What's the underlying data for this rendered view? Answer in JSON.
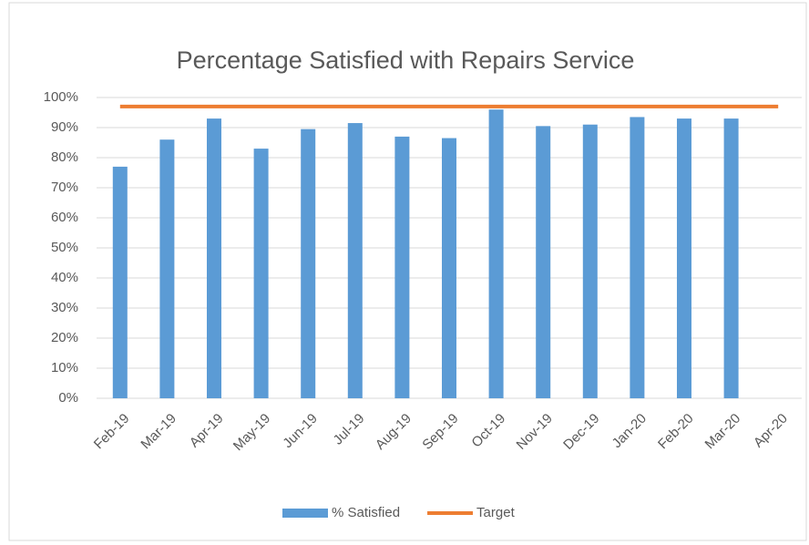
{
  "chart_data": {
    "type": "bar",
    "title": "Percentage Satisfied with Repairs Service",
    "categories": [
      "Feb-19",
      "Mar-19",
      "Apr-19",
      "May-19",
      "Jun-19",
      "Jul-19",
      "Aug-19",
      "Sep-19",
      "Oct-19",
      "Nov-19",
      "Dec-19",
      "Jan-20",
      "Feb-20",
      "Mar-20",
      "Apr-20"
    ],
    "series": [
      {
        "name": "% Satisfied",
        "type": "bar",
        "color": "#5b9bd5",
        "values": [
          77,
          86,
          93,
          83,
          89.5,
          91.5,
          87,
          86.5,
          96,
          90.5,
          91,
          93.5,
          93,
          93,
          null
        ]
      },
      {
        "name": "Target",
        "type": "line",
        "color": "#ed7d31",
        "values": [
          97,
          97,
          97,
          97,
          97,
          97,
          97,
          97,
          97,
          97,
          97,
          97,
          97,
          97,
          97
        ]
      }
    ],
    "ylim": [
      0,
      100
    ],
    "yticks": [
      {
        "value": 0,
        "label": "0%"
      },
      {
        "value": 10,
        "label": "10%"
      },
      {
        "value": 20,
        "label": "20%"
      },
      {
        "value": 30,
        "label": "30%"
      },
      {
        "value": 40,
        "label": "40%"
      },
      {
        "value": 50,
        "label": "50%"
      },
      {
        "value": 60,
        "label": "60%"
      },
      {
        "value": 70,
        "label": "70%"
      },
      {
        "value": 80,
        "label": "80%"
      },
      {
        "value": 90,
        "label": "90%"
      },
      {
        "value": 100,
        "label": "100%"
      }
    ],
    "grid": true,
    "legend": "bottom"
  }
}
